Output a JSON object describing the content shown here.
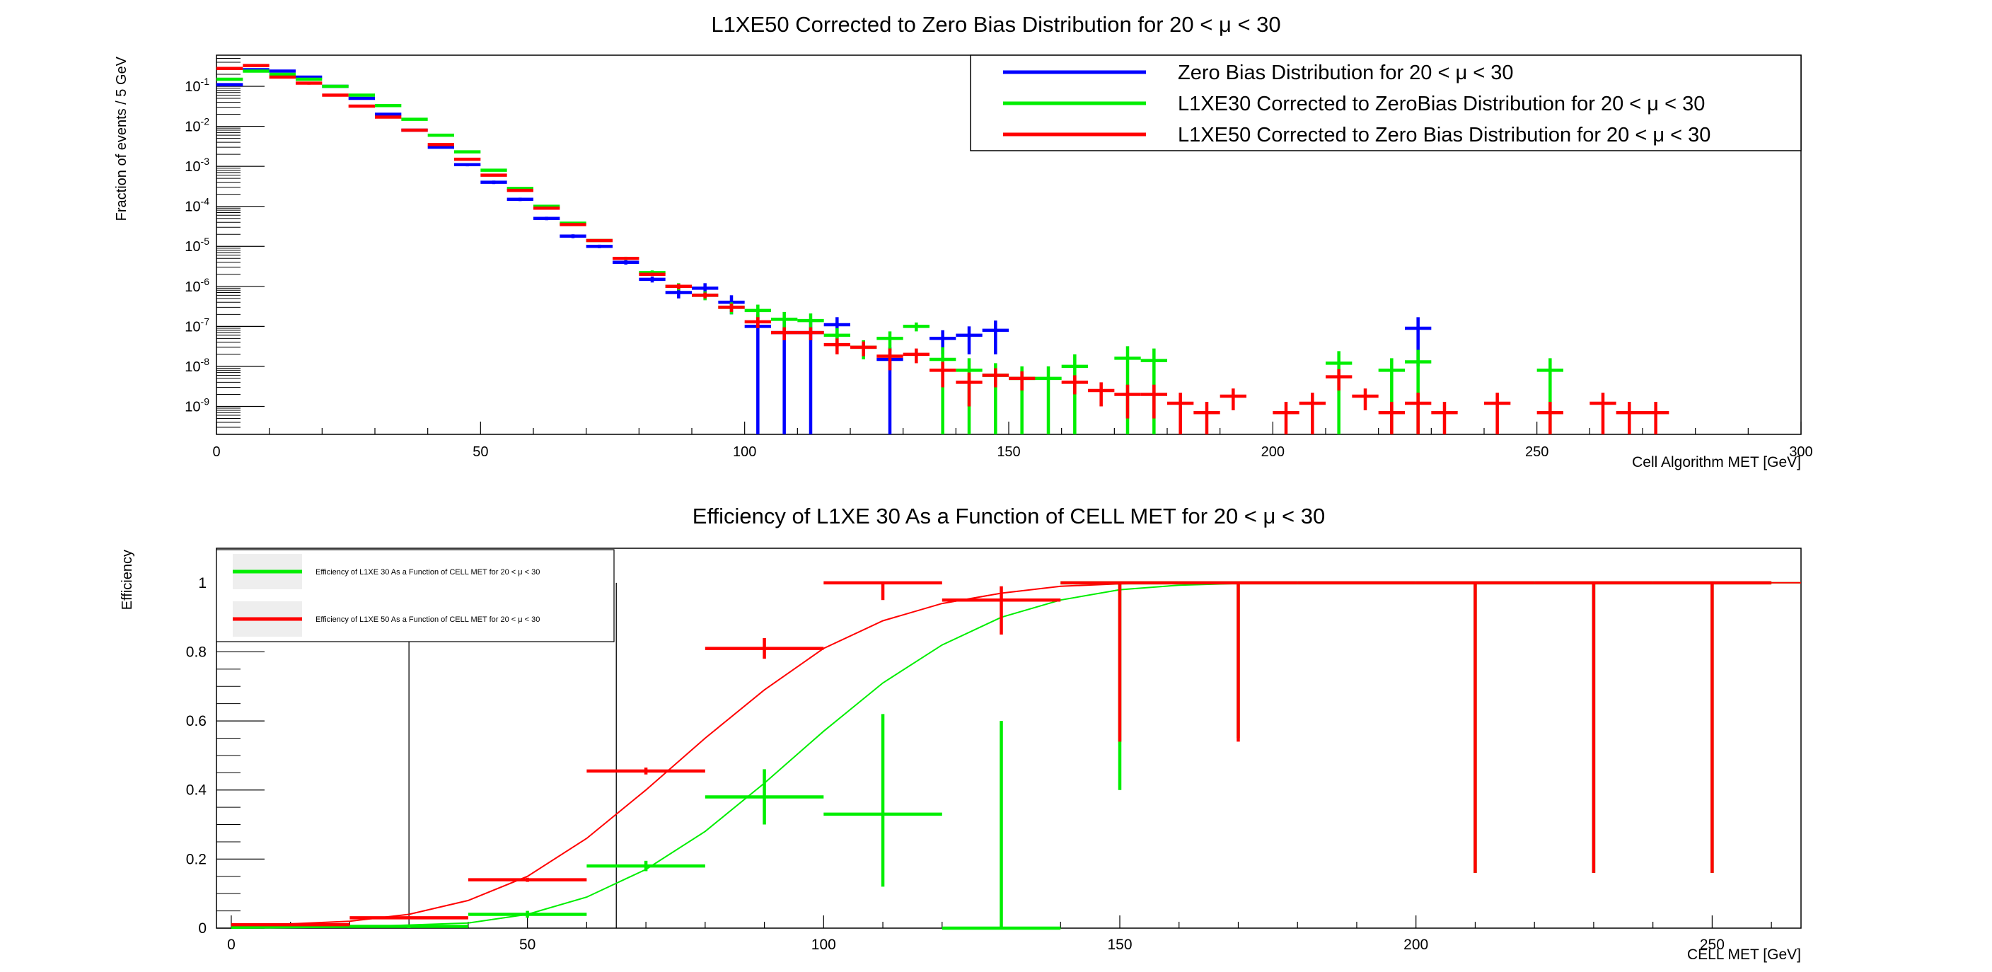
{
  "chart_data": [
    {
      "type": "scatter",
      "title": "L1XE50 Corrected to Zero Bias Distribution for 20 < μ < 30",
      "xlabel": "Cell Algorithm MET [GeV]",
      "ylabel": "Fraction of events / 5 GeV",
      "xlim": [
        0,
        300
      ],
      "ylim": [
        2e-10,
        0.6
      ],
      "y_scale": "log",
      "grid": false,
      "legend_position": "top-right",
      "x_tick_labels": [
        "0",
        "50",
        "100",
        "150",
        "200",
        "250",
        "300"
      ],
      "y_tick_labels": [
        "10^-9",
        "10^-8",
        "10^-7",
        "10^-6",
        "10^-5",
        "10^-4",
        "10^-3",
        "10^-2",
        "10^-1"
      ],
      "series": [
        {
          "name": "Zero Bias Distribution for 20 < μ < 30",
          "color": "#0000ff",
          "x": [
            2.5,
            7.5,
            12.5,
            17.5,
            22.5,
            27.5,
            32.5,
            37.5,
            42.5,
            47.5,
            52.5,
            57.5,
            62.5,
            67.5,
            72.5,
            77.5,
            82.5,
            87.5,
            92.5,
            97.5,
            102.5,
            107.5,
            112.5,
            117.5,
            127.5,
            137.5,
            142.5,
            147.5,
            227.5
          ],
          "y": [
            0.11,
            0.26,
            0.24,
            0.17,
            0.1,
            0.05,
            0.02,
            0.008,
            0.003,
            0.0011,
            0.0004,
            0.00015,
            5e-05,
            1.8e-05,
            1e-05,
            4e-06,
            1.5e-06,
            7e-07,
            9e-07,
            4e-07,
            1e-07,
            7e-08,
            7e-08,
            1.1e-07,
            1.5e-08,
            5e-08,
            6e-08,
            8e-08,
            9e-08
          ],
          "err": [
            0.01,
            0.01,
            0.01,
            0.01,
            0.005,
            0.003,
            0.001,
            0.0005,
            0.0002,
            0.0001,
            4e-05,
            1.5e-05,
            5e-06,
            2e-06,
            1e-06,
            5e-07,
            2.5e-07,
            2e-07,
            3e-07,
            2e-07,
            1e-07,
            7e-08,
            7e-08,
            6e-08,
            1.5e-08,
            3e-08,
            4e-08,
            6e-08,
            8e-08
          ]
        },
        {
          "name": "L1XE30 Corrected to ZeroBias Distribution for 20 < μ < 30",
          "color": "#00ee00",
          "x": [
            2.5,
            7.5,
            12.5,
            17.5,
            22.5,
            27.5,
            32.5,
            37.5,
            42.5,
            47.5,
            52.5,
            57.5,
            62.5,
            67.5,
            72.5,
            77.5,
            82.5,
            87.5,
            92.5,
            97.5,
            102.5,
            107.5,
            112.5,
            117.5,
            122.5,
            127.5,
            132.5,
            137.5,
            142.5,
            147.5,
            152.5,
            157.5,
            162.5,
            172.5,
            177.5,
            212.5,
            222.5,
            227.5,
            252.5
          ],
          "y": [
            0.15,
            0.24,
            0.2,
            0.15,
            0.1,
            0.06,
            0.033,
            0.015,
            0.006,
            0.0023,
            0.0008,
            0.00028,
            0.0001,
            3.8e-05,
            1.4e-05,
            5e-06,
            2.2e-06,
            1e-06,
            6e-07,
            3e-07,
            2.5e-07,
            1.5e-07,
            1.4e-07,
            6e-08,
            3e-08,
            5e-08,
            1e-07,
            1.5e-08,
            8e-09,
            6e-09,
            5e-09,
            5e-09,
            1e-08,
            1.6e-08,
            1.4e-08,
            1.2e-08,
            8e-09,
            1.3e-08,
            8e-09
          ],
          "err": [
            0.01,
            0.01,
            0.01,
            0.01,
            0.005,
            0.003,
            0.0015,
            0.0008,
            0.0003,
            0.0001,
            4e-05,
            1.5e-05,
            6e-06,
            2.5e-06,
            1e-06,
            5e-07,
            3e-07,
            2e-07,
            1.5e-07,
            1e-07,
            1e-07,
            8e-08,
            7e-08,
            3e-08,
            1.5e-08,
            2.5e-08,
            2.5e-08,
            1.5e-08,
            8e-09,
            6e-09,
            5e-09,
            5e-09,
            1e-08,
            1.6e-08,
            1.4e-08,
            1.2e-08,
            8e-09,
            1.3e-08,
            8e-09
          ]
        },
        {
          "name": "L1XE50 Corrected to Zero Bias Distribution for 20 < μ < 30",
          "color": "#ff0000",
          "x": [
            2.5,
            7.5,
            12.5,
            17.5,
            22.5,
            27.5,
            32.5,
            37.5,
            42.5,
            47.5,
            52.5,
            57.5,
            62.5,
            67.5,
            72.5,
            77.5,
            82.5,
            87.5,
            92.5,
            97.5,
            102.5,
            107.5,
            112.5,
            117.5,
            122.5,
            127.5,
            132.5,
            137.5,
            142.5,
            147.5,
            152.5,
            162.5,
            167.5,
            172.5,
            177.5,
            182.5,
            187.5,
            192.5,
            202.5,
            207.5,
            212.5,
            217.5,
            222.5,
            227.5,
            232.5,
            242.5,
            252.5,
            262.5,
            267.5,
            272.5
          ],
          "y": [
            0.28,
            0.33,
            0.17,
            0.12,
            0.06,
            0.032,
            0.017,
            0.008,
            0.0035,
            0.0015,
            0.0006,
            0.00025,
            9e-05,
            3.5e-05,
            1.4e-05,
            5e-06,
            2e-06,
            1e-06,
            6e-07,
            3e-07,
            1.3e-07,
            7e-08,
            7e-08,
            3.5e-08,
            3e-08,
            1.8e-08,
            2e-08,
            8e-09,
            4e-09,
            6e-09,
            5e-09,
            4e-09,
            2.5e-09,
            2e-09,
            2e-09,
            1.2e-09,
            7e-10,
            1.8e-09,
            7e-10,
            1.2e-09,
            5.5e-09,
            1.8e-09,
            7e-10,
            1.2e-09,
            7e-10,
            1.2e-09,
            7e-10,
            1.2e-09,
            7e-10,
            7e-10
          ],
          "err": [
            0.02,
            0.02,
            0.01,
            0.01,
            0.004,
            0.002,
            0.001,
            0.0005,
            0.0002,
            0.0001,
            4e-05,
            1.5e-05,
            6e-06,
            2.5e-06,
            1e-06,
            4e-07,
            2e-07,
            1.5e-07,
            1e-07,
            7e-08,
            4e-08,
            2.5e-08,
            2.5e-08,
            1.5e-08,
            1.2e-08,
            1e-08,
            8e-09,
            5e-09,
            3e-09,
            3e-09,
            2.5e-09,
            2e-09,
            1.5e-09,
            1.5e-09,
            1.5e-09,
            1e-09,
            6e-10,
            1e-09,
            6e-10,
            1e-09,
            3e-09,
            1e-09,
            6e-10,
            1e-09,
            6e-10,
            1e-09,
            6e-10,
            1e-09,
            6e-10,
            6e-10
          ]
        }
      ]
    },
    {
      "type": "scatter",
      "title": "Efficiency of L1XE 30 As a Function of CELL MET for 20 < μ < 30",
      "xlabel": "CELL MET [GeV]",
      "ylabel": "Efficiency",
      "xlim": [
        -2.5,
        265
      ],
      "ylim": [
        0,
        1.1
      ],
      "grid": false,
      "legend_position": "top-left",
      "x_tick_labels": [
        "0",
        "50",
        "100",
        "150",
        "200",
        "250"
      ],
      "y_tick_labels": [
        "0",
        "0.2",
        "0.4",
        "0.6",
        "0.8",
        "1"
      ],
      "bin_halfwidth": 10,
      "series": [
        {
          "name": "Efficiency of L1XE 30 As a Function of CELL MET for 20 < μ < 30",
          "color": "#00ee00",
          "x": [
            10,
            30,
            50,
            70,
            90,
            110,
            130,
            150,
            170,
            190,
            210,
            230,
            250
          ],
          "y": [
            0.005,
            0.005,
            0.04,
            0.18,
            0.38,
            0.33,
            0.0,
            1.0,
            1.0,
            1.0,
            1.0,
            1.0,
            1.0
          ],
          "ylow": [
            0.003,
            0.005,
            0.01,
            0.015,
            0.08,
            0.21,
            0.0,
            0.6,
            0.45,
            0.0,
            0.84,
            0.84,
            0.84
          ],
          "yup": [
            0.003,
            0.005,
            0.01,
            0.015,
            0.08,
            0.29,
            0.6,
            0.0,
            0.0,
            0.0,
            0.0,
            0.0,
            0.0
          ]
        },
        {
          "name": "Efficiency of L1XE 50 As a Function of CELL MET for 20 < μ < 30",
          "color": "#ff0000",
          "x": [
            10,
            30,
            50,
            70,
            90,
            110,
            130,
            150,
            170,
            190,
            210,
            230,
            250
          ],
          "y": [
            0.01,
            0.03,
            0.14,
            0.455,
            0.81,
            1.0,
            0.95,
            1.0,
            1.0,
            1.0,
            1.0,
            1.0,
            1.0
          ],
          "ylow": [
            0.003,
            0.004,
            0.006,
            0.01,
            0.03,
            0.05,
            0.1,
            0.46,
            0.46,
            0.0,
            0.84,
            0.84,
            0.84
          ],
          "yup": [
            0.003,
            0.004,
            0.006,
            0.01,
            0.03,
            0.0,
            0.04,
            0.0,
            0.0,
            0.0,
            0.0,
            0.0,
            0.0
          ]
        }
      ],
      "fits": [
        {
          "color": "#00ee00",
          "x": [
            0,
            20,
            40,
            50,
            60,
            70,
            80,
            90,
            100,
            110,
            120,
            130,
            140,
            150,
            160,
            170,
            180,
            265
          ],
          "y": [
            0.0,
            0.003,
            0.015,
            0.04,
            0.09,
            0.17,
            0.28,
            0.42,
            0.57,
            0.71,
            0.82,
            0.9,
            0.95,
            0.98,
            0.993,
            0.998,
            1.0,
            1.0
          ]
        },
        {
          "color": "#ff0000",
          "x": [
            0,
            20,
            30,
            40,
            50,
            60,
            70,
            80,
            90,
            100,
            110,
            120,
            130,
            140,
            150,
            160,
            265
          ],
          "y": [
            0.005,
            0.02,
            0.04,
            0.08,
            0.15,
            0.26,
            0.4,
            0.55,
            0.69,
            0.81,
            0.89,
            0.94,
            0.97,
            0.99,
            0.997,
            1.0,
            1.0
          ]
        }
      ],
      "vertical_lines_x": [
        30,
        65
      ]
    }
  ]
}
